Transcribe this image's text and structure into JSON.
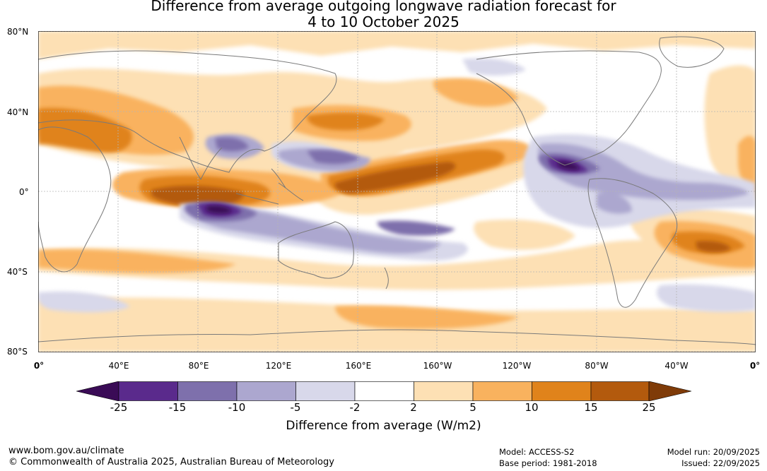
{
  "title_line1": "Difference from average outgoing longwave radiation forecast for",
  "title_line2": "4 to 10 October 2025",
  "map": {
    "lat_labels": [
      "80°N",
      "40°N",
      "0°",
      "40°S",
      "80°S"
    ],
    "lon_labels": [
      "0°",
      "40°E",
      "80°E",
      "120°E",
      "160°E",
      "160°W",
      "120°W",
      "80°W",
      "40°W",
      "0°"
    ],
    "land_color": "#7a7a7a",
    "grid_color": "#b5b5b5"
  },
  "colorbar": {
    "title": "Difference from average (W/m2)",
    "ticks": [
      "-25",
      "-15",
      "-10",
      "-5",
      "-2",
      "2",
      "5",
      "10",
      "15",
      "25"
    ],
    "colors": [
      "#3a0b56",
      "#5a2a8c",
      "#7e70ac",
      "#aca7cf",
      "#d8d8ea",
      "#ffffff",
      "#fde0b4",
      "#f9b25e",
      "#e0831b",
      "#b35a0d",
      "#7f3b08"
    ]
  },
  "footer": {
    "website": "www.bom.gov.au/climate",
    "copyright": "© Commonwealth of Australia 2025, Australian Bureau of Meteorology",
    "model": "Model: ACCESS-S2",
    "base_period": "Base period: 1981-2018",
    "model_run": "Model run: 20/09/2025",
    "issued": "Issued: 22/09/2025"
  }
}
